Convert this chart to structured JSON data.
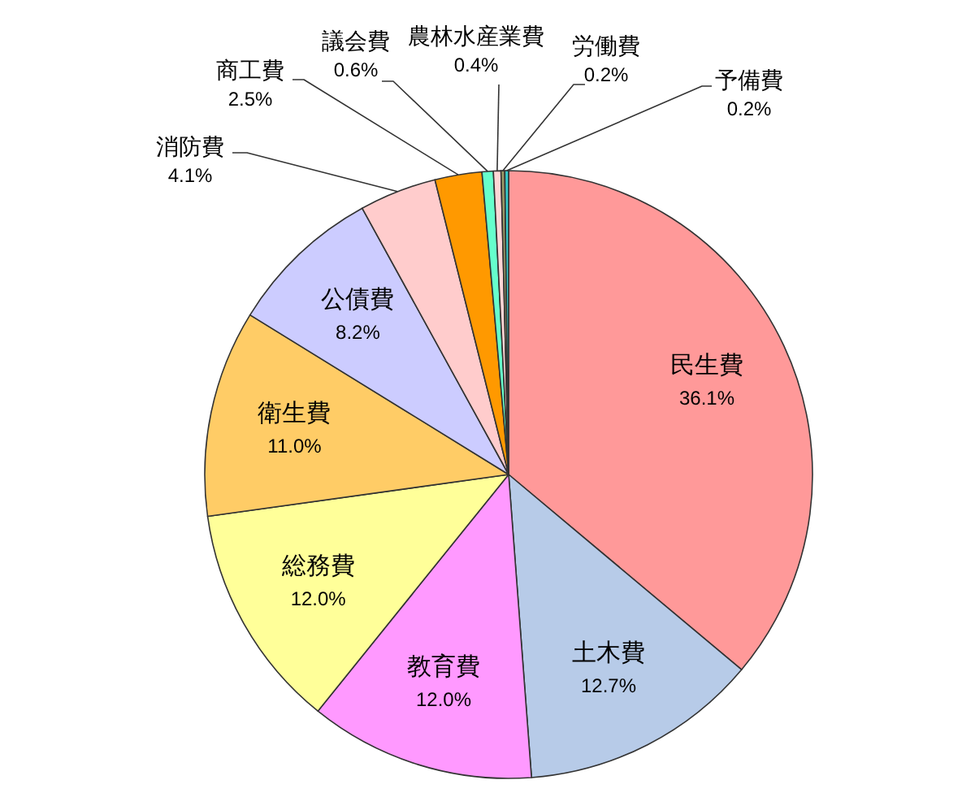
{
  "chart_data": {
    "type": "pie",
    "categories": [
      "民生費",
      "土木費",
      "教育費",
      "総務費",
      "衛生費",
      "公債費",
      "消防費",
      "商工費",
      "議会費",
      "農林水産業費",
      "労働費",
      "予備費"
    ],
    "values": [
      36.1,
      12.7,
      12.0,
      12.0,
      11.0,
      8.2,
      4.1,
      2.5,
      0.6,
      0.4,
      0.2,
      0.2
    ],
    "value_labels": [
      "36.1%",
      "12.7%",
      "12.0%",
      "12.0%",
      "11.0%",
      "8.2%",
      "4.1%",
      "2.5%",
      "0.6%",
      "0.4%",
      "0.2%",
      "0.2%"
    ],
    "colors": [
      "#ff9999",
      "#b7cbe8",
      "#ff99ff",
      "#ffff99",
      "#ffcc66",
      "#ccccff",
      "#ffcccc",
      "#ff9900",
      "#66ffcc",
      "#ffd6d6",
      "#999966",
      "#33cccc"
    ]
  }
}
